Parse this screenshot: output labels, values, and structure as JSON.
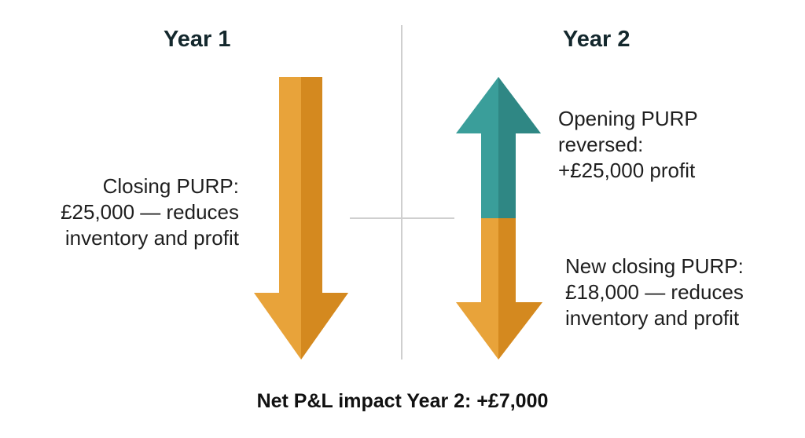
{
  "columns": {
    "year1": {
      "heading": "Year 1"
    },
    "year2": {
      "heading": "Year 2"
    }
  },
  "labels": {
    "closing_purp": [
      "Closing PURP:",
      "£25,000 — reduces",
      "inventory and profit"
    ],
    "opening_purp_reversed": [
      "Opening PURP",
      "reversed:",
      "+£25,000 profit"
    ],
    "new_closing_purp": [
      "New closing PURP:",
      "£18,000 — reduces",
      "inventory and profit"
    ]
  },
  "footer": "Net P&L impact Year 2: +£7,000",
  "arrows": {
    "year1_down": {
      "direction": "down",
      "meaning": "reduces profit"
    },
    "year2_up": {
      "direction": "up",
      "meaning": "adds profit"
    },
    "year2_down": {
      "direction": "down",
      "meaning": "reduces profit"
    }
  },
  "colors": {
    "reduce": "#e8a33a",
    "reduce_shade": "#d4891f",
    "increase": "#3a9e9a",
    "increase_shade": "#2f8784",
    "divider": "#cfcfcf",
    "heading_text": "#14282d"
  }
}
